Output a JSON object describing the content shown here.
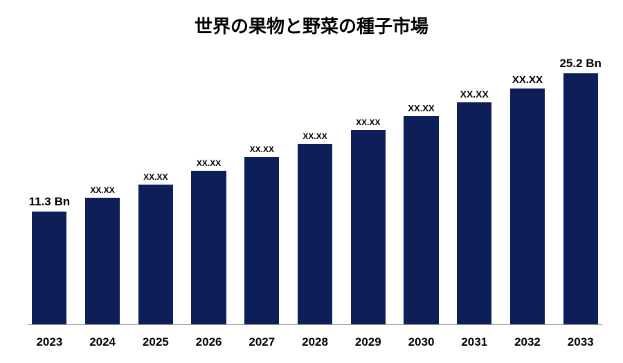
{
  "chart": {
    "type": "bar",
    "title": "世界の果物と野菜の種子市場",
    "title_fontsize": 26,
    "background_color": "#ffffff",
    "bar_color": "#0e1e59",
    "axis_color": "#9a9a9a",
    "text_color": "#000000",
    "bar_width_pct": 80,
    "ylim": [
      0,
      27
    ],
    "categories": [
      "2023",
      "2024",
      "2025",
      "2026",
      "2027",
      "2028",
      "2029",
      "2030",
      "2031",
      "2032",
      "2033"
    ],
    "values": [
      11.3,
      12.7,
      14.0,
      15.4,
      16.8,
      18.1,
      19.5,
      20.9,
      22.3,
      23.7,
      25.2
    ],
    "bar_labels": [
      "11.3 Bn",
      "XX.XX",
      "XX.XX",
      "XX.XX",
      "XX.XX",
      "XX.XX",
      "XX.XX",
      "XX.XX",
      "XX.XX",
      "XX.XX",
      "25.2 Bn"
    ],
    "label_fontsizes": [
      17,
      12,
      12,
      12,
      12,
      12,
      12,
      13,
      14,
      15,
      17
    ],
    "xtick_fontsize": 17
  }
}
